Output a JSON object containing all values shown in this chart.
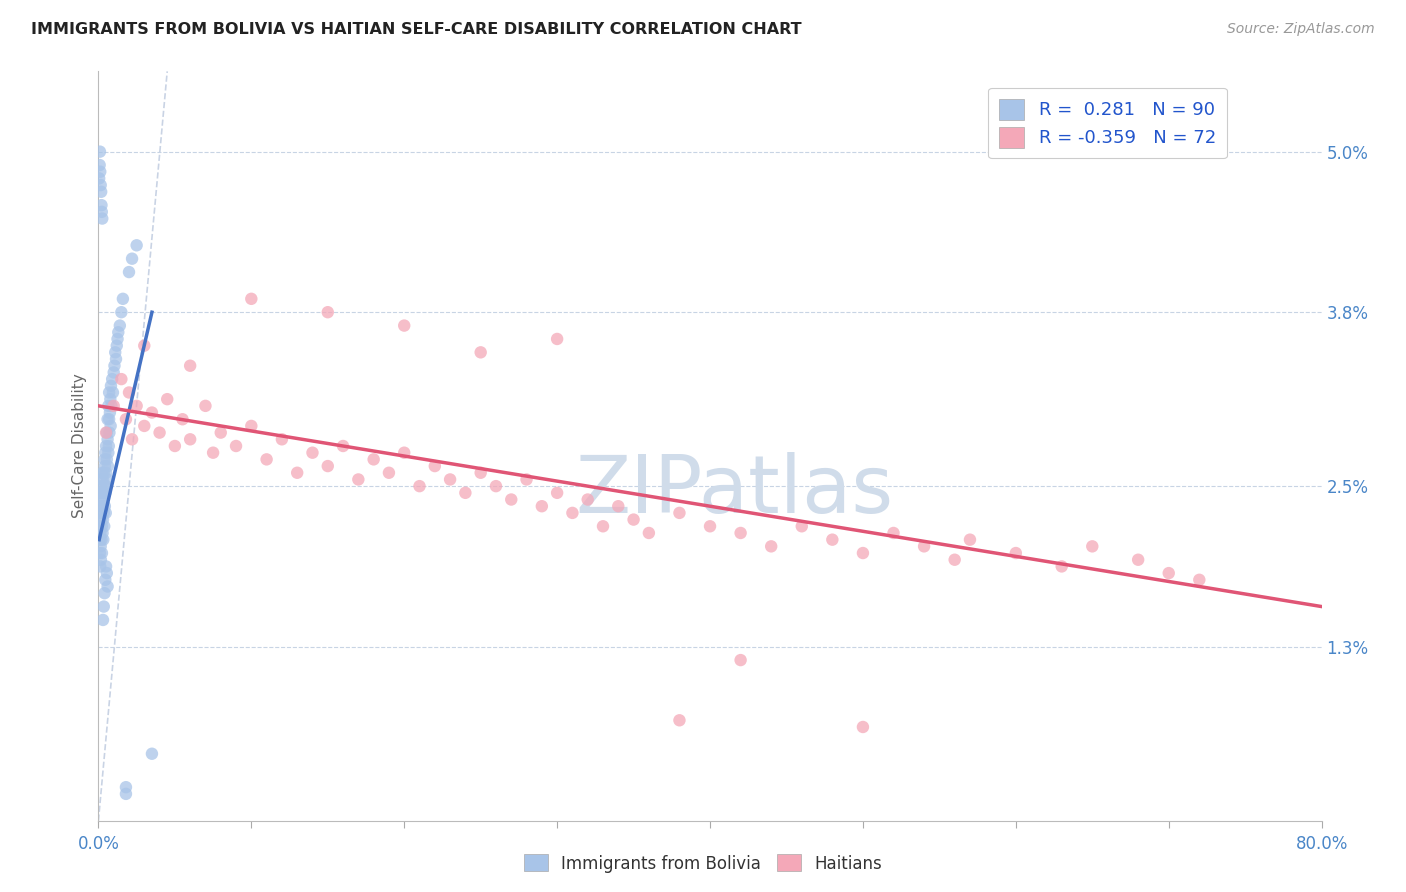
{
  "title": "IMMIGRANTS FROM BOLIVIA VS HAITIAN SELF-CARE DISABILITY CORRELATION CHART",
  "source": "Source: ZipAtlas.com",
  "ylabel": "Self-Care Disability",
  "ytick_vals": [
    1.3,
    2.5,
    3.8,
    5.0
  ],
  "ytick_labels": [
    "1.3%",
    "2.5%",
    "3.8%",
    "5.0%"
  ],
  "xtick_vals": [
    0,
    10,
    20,
    30,
    40,
    50,
    60,
    70,
    80
  ],
  "xlim": [
    0.0,
    80.0
  ],
  "ylim": [
    0.0,
    5.6
  ],
  "color_blue": "#a8c4e8",
  "color_pink": "#f4a8b8",
  "line_blue": "#4472c4",
  "line_pink": "#e05575",
  "line_diag_color": "#c0cce0",
  "watermark_color": "#d0dcea",
  "bolivia_x": [
    0.05,
    0.08,
    0.1,
    0.1,
    0.12,
    0.12,
    0.13,
    0.14,
    0.15,
    0.15,
    0.16,
    0.18,
    0.18,
    0.2,
    0.2,
    0.22,
    0.22,
    0.23,
    0.25,
    0.25,
    0.27,
    0.28,
    0.3,
    0.3,
    0.32,
    0.33,
    0.35,
    0.35,
    0.38,
    0.4,
    0.4,
    0.42,
    0.42,
    0.45,
    0.45,
    0.48,
    0.5,
    0.5,
    0.52,
    0.55,
    0.55,
    0.58,
    0.6,
    0.6,
    0.62,
    0.65,
    0.65,
    0.68,
    0.7,
    0.7,
    0.72,
    0.75,
    0.78,
    0.8,
    0.82,
    0.85,
    0.9,
    0.95,
    1.0,
    1.05,
    1.1,
    1.15,
    1.2,
    1.25,
    1.3,
    1.4,
    1.5,
    1.6,
    1.8,
    2.0,
    2.2,
    2.5,
    0.05,
    0.08,
    0.1,
    0.12,
    0.15,
    0.18,
    0.2,
    0.22,
    0.25,
    0.3,
    0.35,
    0.4,
    0.45,
    0.5,
    0.55,
    0.6,
    1.8,
    3.5
  ],
  "bolivia_y": [
    2.2,
    2.1,
    2.0,
    2.35,
    1.9,
    2.45,
    2.15,
    2.3,
    2.05,
    2.5,
    1.95,
    2.25,
    2.4,
    2.1,
    2.55,
    2.2,
    2.45,
    2.0,
    2.35,
    2.6,
    2.15,
    2.4,
    2.25,
    2.55,
    2.1,
    2.45,
    2.3,
    2.6,
    2.2,
    2.5,
    2.7,
    2.35,
    2.65,
    2.45,
    2.75,
    2.3,
    2.6,
    2.8,
    2.5,
    2.7,
    2.9,
    2.55,
    2.85,
    3.0,
    2.65,
    2.75,
    3.1,
    2.8,
    3.0,
    3.2,
    2.9,
    3.05,
    3.15,
    2.95,
    3.25,
    3.1,
    3.3,
    3.2,
    3.35,
    3.4,
    3.5,
    3.45,
    3.55,
    3.6,
    3.65,
    3.7,
    3.8,
    3.9,
    0.25,
    4.1,
    4.2,
    4.3,
    4.8,
    4.9,
    5.0,
    4.85,
    4.75,
    4.7,
    4.6,
    4.55,
    4.5,
    1.5,
    1.6,
    1.7,
    1.8,
    1.9,
    1.85,
    1.75,
    0.2,
    0.5
  ],
  "haitian_x": [
    0.5,
    1.0,
    1.5,
    1.8,
    2.0,
    2.2,
    2.5,
    3.0,
    3.5,
    4.0,
    4.5,
    5.0,
    5.5,
    6.0,
    7.0,
    7.5,
    8.0,
    9.0,
    10.0,
    11.0,
    12.0,
    13.0,
    14.0,
    15.0,
    16.0,
    17.0,
    18.0,
    19.0,
    20.0,
    21.0,
    22.0,
    23.0,
    24.0,
    25.0,
    26.0,
    27.0,
    28.0,
    29.0,
    30.0,
    31.0,
    32.0,
    33.0,
    34.0,
    35.0,
    36.0,
    38.0,
    40.0,
    42.0,
    44.0,
    46.0,
    48.0,
    50.0,
    52.0,
    54.0,
    56.0,
    57.0,
    60.0,
    63.0,
    65.0,
    68.0,
    70.0,
    72.0,
    38.0,
    50.0,
    42.0,
    25.0,
    30.0,
    20.0,
    15.0,
    10.0,
    6.0,
    3.0
  ],
  "haitian_y": [
    2.9,
    3.1,
    3.3,
    3.0,
    3.2,
    2.85,
    3.1,
    2.95,
    3.05,
    2.9,
    3.15,
    2.8,
    3.0,
    2.85,
    3.1,
    2.75,
    2.9,
    2.8,
    2.95,
    2.7,
    2.85,
    2.6,
    2.75,
    2.65,
    2.8,
    2.55,
    2.7,
    2.6,
    2.75,
    2.5,
    2.65,
    2.55,
    2.45,
    2.6,
    2.5,
    2.4,
    2.55,
    2.35,
    2.45,
    2.3,
    2.4,
    2.2,
    2.35,
    2.25,
    2.15,
    2.3,
    2.2,
    2.15,
    2.05,
    2.2,
    2.1,
    2.0,
    2.15,
    2.05,
    1.95,
    2.1,
    2.0,
    1.9,
    2.05,
    1.95,
    1.85,
    1.8,
    0.75,
    0.7,
    1.2,
    3.5,
    3.6,
    3.7,
    3.8,
    3.9,
    3.4,
    3.55
  ],
  "diag_x0": 0.0,
  "diag_y0": 0.0,
  "diag_x1": 4.5,
  "diag_y1": 5.6,
  "bolivia_reg_x0": 0.05,
  "bolivia_reg_x1": 3.5,
  "bolivia_reg_y0": 2.1,
  "bolivia_reg_y1": 3.8,
  "haitian_reg_x0": 0.0,
  "haitian_reg_x1": 80.0,
  "haitian_reg_y0": 3.1,
  "haitian_reg_y1": 1.6
}
